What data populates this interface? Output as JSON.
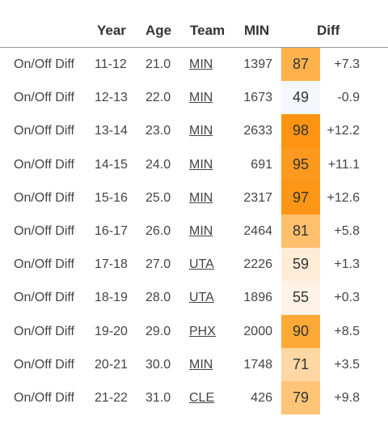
{
  "header": {
    "year": "Year",
    "age": "Age",
    "team": "Team",
    "min": "MIN",
    "diff": "Diff"
  },
  "rows": [
    {
      "stat": "On/Off Diff",
      "year": "11-12",
      "age": "21.0",
      "team": "MIN",
      "min": "1397",
      "pct": "87",
      "diff": "+7.3",
      "color": "#fdb24c"
    },
    {
      "stat": "On/Off Diff",
      "year": "12-13",
      "age": "22.0",
      "team": "MIN",
      "min": "1673",
      "pct": "49",
      "diff": "-0.9",
      "color": "#f4f7fb"
    },
    {
      "stat": "On/Off Diff",
      "year": "13-14",
      "age": "23.0",
      "team": "MIN",
      "min": "2633",
      "pct": "98",
      "diff": "+12.2",
      "color": "#fd9411"
    },
    {
      "stat": "On/Off Diff",
      "year": "14-15",
      "age": "24.0",
      "team": "MIN",
      "min": "691",
      "pct": "95",
      "diff": "+11.1",
      "color": "#fd9a1e"
    },
    {
      "stat": "On/Off Diff",
      "year": "15-16",
      "age": "25.0",
      "team": "MIN",
      "min": "2317",
      "pct": "97",
      "diff": "+12.6",
      "color": "#fd9616"
    },
    {
      "stat": "On/Off Diff",
      "year": "16-17",
      "age": "26.0",
      "team": "MIN",
      "min": "2464",
      "pct": "81",
      "diff": "+5.8",
      "color": "#fec06c"
    },
    {
      "stat": "On/Off Diff",
      "year": "17-18",
      "age": "27.0",
      "team": "UTA",
      "min": "2226",
      "pct": "59",
      "diff": "+1.3",
      "color": "#ffecd6"
    },
    {
      "stat": "On/Off Diff",
      "year": "18-19",
      "age": "28.0",
      "team": "UTA",
      "min": "1896",
      "pct": "55",
      "diff": "+0.3",
      "color": "#fff3e7"
    },
    {
      "stat": "On/Off Diff",
      "year": "19-20",
      "age": "29.0",
      "team": "PHX",
      "min": "2000",
      "pct": "90",
      "diff": "+8.5",
      "color": "#fda937"
    },
    {
      "stat": "On/Off Diff",
      "year": "20-21",
      "age": "30.0",
      "team": "MIN",
      "min": "1748",
      "pct": "71",
      "diff": "+3.5",
      "color": "#fed7a4"
    },
    {
      "stat": "On/Off Diff",
      "year": "21-22",
      "age": "31.0",
      "team": "CLE",
      "min": "426",
      "pct": "79",
      "diff": "+9.8",
      "color": "#fec477"
    }
  ]
}
